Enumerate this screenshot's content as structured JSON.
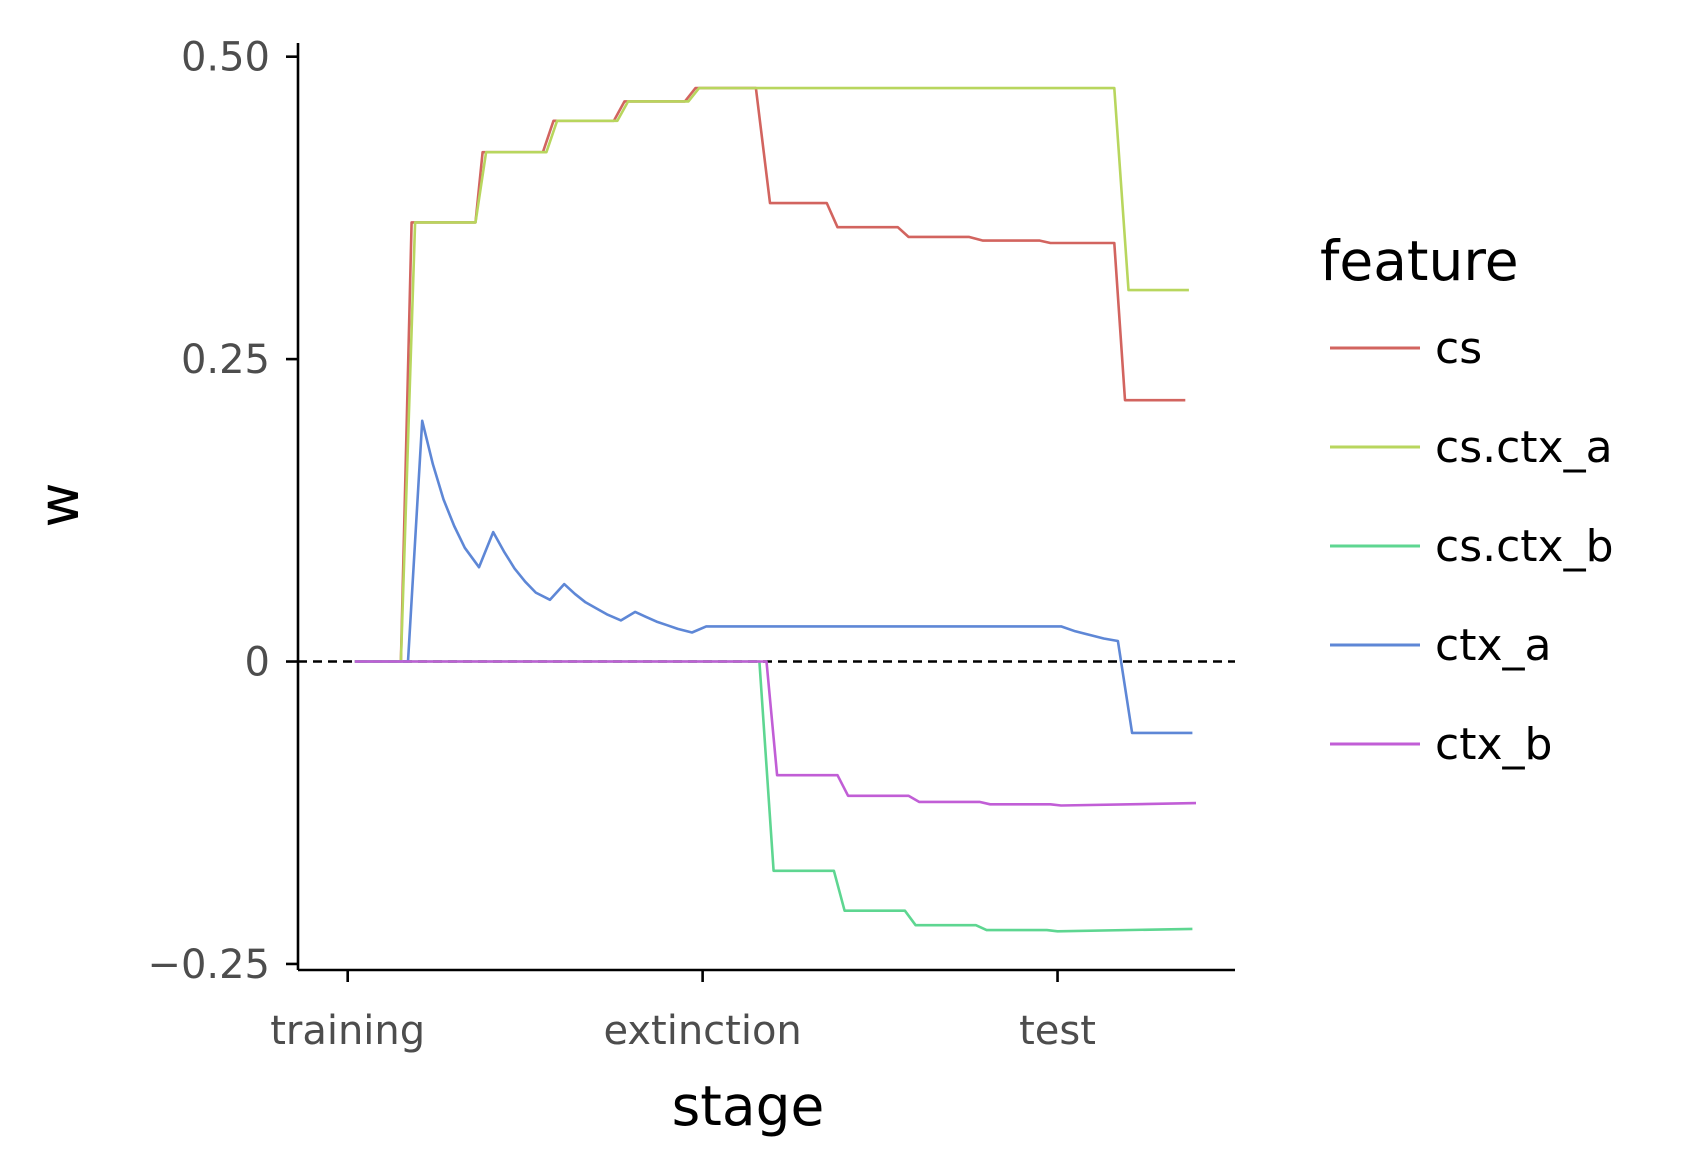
{
  "chart_data": {
    "type": "line",
    "xlabel": "stage",
    "ylabel": "w",
    "x_categories": [
      "training",
      "extinction",
      "test"
    ],
    "xlim": [
      -0.14,
      2.5
    ],
    "ylim": [
      -0.255,
      0.508
    ],
    "y_ticks": [
      {
        "value": -0.25,
        "label": "−0.25"
      },
      {
        "value": 0,
        "label": "0"
      },
      {
        "value": 0.25,
        "label": "0.25"
      },
      {
        "value": 0.5,
        "label": "0.50"
      }
    ],
    "reference_line": {
      "y": 0,
      "style": "dashed",
      "color": "#000000"
    },
    "grid": false,
    "legend": {
      "title": "feature",
      "placement": "right"
    },
    "series": [
      {
        "name": "cs",
        "color": "#D2645F",
        "x": [
          0.02,
          0.15,
          0.18,
          0.36,
          0.38,
          0.55,
          0.58,
          0.75,
          0.78,
          0.95,
          0.98,
          1.15,
          1.19,
          1.35,
          1.38,
          1.55,
          1.58,
          1.75,
          1.79,
          1.95,
          1.98,
          2.16,
          2.19,
          2.36
        ],
        "y": [
          0,
          0,
          0.363,
          0.363,
          0.421,
          0.421,
          0.447,
          0.447,
          0.463,
          0.463,
          0.474,
          0.474,
          0.379,
          0.379,
          0.359,
          0.359,
          0.351,
          0.351,
          0.348,
          0.348,
          0.346,
          0.346,
          0.216,
          0.216
        ]
      },
      {
        "name": "cs.ctx_a",
        "color": "#B8D65E",
        "x": [
          0.02,
          0.15,
          0.19,
          0.36,
          0.39,
          0.56,
          0.59,
          0.76,
          0.79,
          0.96,
          0.99,
          2.16,
          2.2,
          2.37
        ],
        "y": [
          0,
          0,
          0.363,
          0.363,
          0.421,
          0.421,
          0.447,
          0.447,
          0.463,
          0.463,
          0.474,
          0.474,
          0.307,
          0.307
        ]
      },
      {
        "name": "cs.ctx_b",
        "color": "#5ED691",
        "x": [
          0.02,
          1.16,
          1.2,
          1.37,
          1.4,
          1.57,
          1.6,
          1.77,
          1.8,
          1.97,
          2.0,
          2.38
        ],
        "y": [
          0,
          0,
          -0.173,
          -0.173,
          -0.206,
          -0.206,
          -0.218,
          -0.218,
          -0.222,
          -0.222,
          -0.223,
          -0.221
        ]
      },
      {
        "name": "ctx_a",
        "color": "#5E87D6",
        "x": [
          0.02,
          0.17,
          0.21,
          0.24,
          0.27,
          0.3,
          0.33,
          0.37,
          0.41,
          0.44,
          0.47,
          0.5,
          0.53,
          0.57,
          0.61,
          0.64,
          0.67,
          0.7,
          0.73,
          0.77,
          0.81,
          0.84,
          0.87,
          0.9,
          0.93,
          0.97,
          1.01,
          2.01,
          2.05,
          2.09,
          2.13,
          2.17,
          2.21,
          2.38
        ],
        "y": [
          0,
          0,
          0.199,
          0.163,
          0.134,
          0.112,
          0.094,
          0.078,
          0.107,
          0.091,
          0.077,
          0.066,
          0.057,
          0.051,
          0.064,
          0.056,
          0.049,
          0.044,
          0.039,
          0.034,
          0.041,
          0.037,
          0.033,
          0.03,
          0.027,
          0.024,
          0.029,
          0.029,
          0.025,
          0.022,
          0.019,
          0.017,
          -0.059,
          -0.059
        ]
      },
      {
        "name": "ctx_b",
        "color": "#C15ED6",
        "x": [
          0.02,
          1.18,
          1.21,
          1.38,
          1.41,
          1.58,
          1.61,
          1.78,
          1.81,
          1.98,
          2.01,
          2.39
        ],
        "y": [
          0,
          0,
          -0.094,
          -0.094,
          -0.111,
          -0.111,
          -0.116,
          -0.116,
          -0.118,
          -0.118,
          -0.119,
          -0.117
        ]
      }
    ]
  }
}
